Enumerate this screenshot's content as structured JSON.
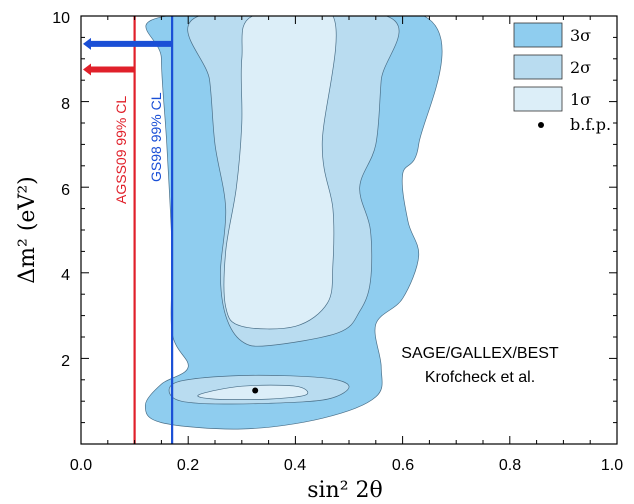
{
  "chart_data": {
    "type": "contour",
    "xlabel": "sin² 2θ",
    "ylabel": "Δm² (eV²)",
    "xlim": [
      0.0,
      1.0
    ],
    "ylim": [
      0,
      10
    ],
    "x_ticks": [
      "0.0",
      "0.2",
      "0.4",
      "0.6",
      "0.8",
      "1.0"
    ],
    "y_ticks": [
      "2",
      "4",
      "6",
      "8",
      "10"
    ],
    "grid": false,
    "legend_position": "top-right",
    "legend": [
      {
        "label": "3σ",
        "color": "#8fcdef"
      },
      {
        "label": "2σ",
        "color": "#b9dcf0"
      },
      {
        "label": "1σ",
        "color": "#dceef8"
      },
      {
        "label": "b.f.p.",
        "marker": "dot"
      }
    ],
    "colors": {
      "sigma3": "#8fcdef",
      "sigma2": "#b9dcf0",
      "sigma1": "#dceef8",
      "agss09": "#e0202a",
      "gs98": "#1a4fd6"
    },
    "regions": {
      "sigma3": [
        [
          0.16,
          10
        ],
        [
          0.64,
          10
        ],
        [
          0.63,
          7
        ],
        [
          0.6,
          6.3
        ],
        [
          0.61,
          5.2
        ],
        [
          0.63,
          4.4
        ],
        [
          0.6,
          3.4
        ],
        [
          0.55,
          2.8
        ],
        [
          0.56,
          1.8
        ],
        [
          0.55,
          1.1
        ],
        [
          0.45,
          0.6
        ],
        [
          0.3,
          0.35
        ],
        [
          0.15,
          0.5
        ],
        [
          0.12,
          0.9
        ],
        [
          0.15,
          1.4
        ],
        [
          0.2,
          1.8
        ],
        [
          0.17,
          2.6
        ],
        [
          0.17,
          4.5
        ],
        [
          0.16,
          7
        ],
        [
          0.15,
          9
        ]
      ],
      "sigma2": [
        [
          0.22,
          10
        ],
        [
          0.57,
          10
        ],
        [
          0.56,
          8.5
        ],
        [
          0.55,
          7
        ],
        [
          0.52,
          6
        ],
        [
          0.54,
          5
        ],
        [
          0.54,
          3.8
        ],
        [
          0.52,
          3.1
        ],
        [
          0.48,
          2.6
        ],
        [
          0.35,
          2.3
        ],
        [
          0.3,
          2.4
        ],
        [
          0.27,
          3
        ],
        [
          0.26,
          4
        ],
        [
          0.27,
          5.5
        ],
        [
          0.25,
          7
        ],
        [
          0.24,
          8.5
        ]
      ],
      "sigma1": [
        [
          0.32,
          10
        ],
        [
          0.47,
          10
        ],
        [
          0.45,
          7
        ],
        [
          0.47,
          5.5
        ],
        [
          0.47,
          4.2
        ],
        [
          0.46,
          3.3
        ],
        [
          0.4,
          2.75
        ],
        [
          0.3,
          2.75
        ],
        [
          0.27,
          3.2
        ],
        [
          0.27,
          4.5
        ],
        [
          0.29,
          6
        ],
        [
          0.3,
          7.5
        ],
        [
          0.3,
          9
        ]
      ],
      "sigma2_island": [
        [
          0.18,
          1.45
        ],
        [
          0.3,
          1.6
        ],
        [
          0.45,
          1.55
        ],
        [
          0.5,
          1.35
        ],
        [
          0.46,
          1.05
        ],
        [
          0.35,
          0.95
        ],
        [
          0.22,
          0.95
        ],
        [
          0.17,
          1.1
        ]
      ],
      "sigma1_island": [
        [
          0.22,
          1.15
        ],
        [
          0.3,
          1.35
        ],
        [
          0.4,
          1.35
        ],
        [
          0.42,
          1.15
        ],
        [
          0.35,
          1.05
        ],
        [
          0.25,
          1.05
        ]
      ]
    },
    "best_fit_point": {
      "x": 0.325,
      "y": 1.25
    },
    "limits": [
      {
        "label": "AGSS09 99% CL",
        "x": 0.1,
        "arrow_y": 8.75,
        "color": "#e0202a"
      },
      {
        "label": "GS98 99% CL",
        "x": 0.17,
        "arrow_y": 9.35,
        "color": "#1a4fd6"
      }
    ],
    "annotations": [
      "SAGE/GALLEX/BEST",
      "Krofcheck et al."
    ]
  }
}
